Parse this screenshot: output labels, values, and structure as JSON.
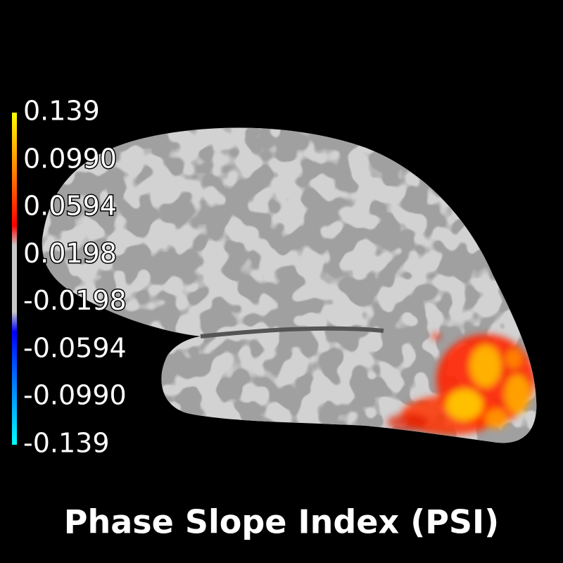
{
  "title": "Phase Slope Index (PSI)",
  "colorbar": {
    "ticks": [
      0.139,
      {
        "value": 0.099,
        "label": "0.0990"
      },
      0.0594,
      0.0198,
      -0.0198,
      -0.0594,
      {
        "value": -0.099,
        "label": "-0.0990"
      },
      -0.139
    ]
  }
}
